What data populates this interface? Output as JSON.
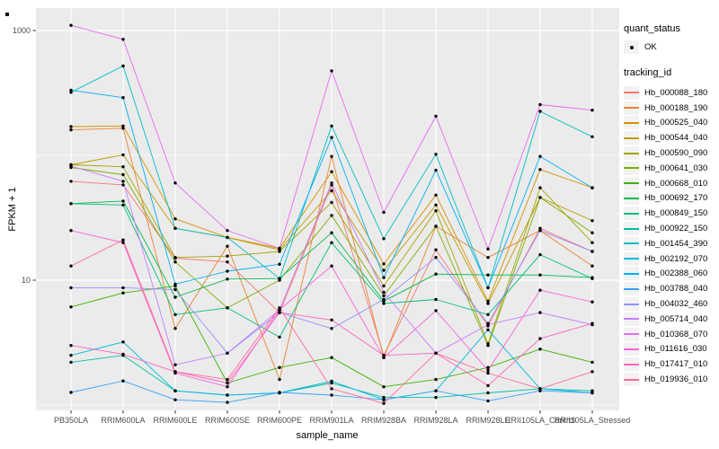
{
  "figure": {
    "panel_background": "#EBEBEB",
    "gridline_color": "#FFFFFF",
    "point_color": "#000000",
    "axis_text_color": "#4D4D4D",
    "tick_color": "#333333"
  },
  "chart_data": {
    "type": "line",
    "title": "",
    "xlabel": "sample_name",
    "ylabel": "FPKM + 1",
    "y_scale": "log10",
    "ylim": [
      0.8,
      1500
    ],
    "grid": true,
    "legend_position": "right",
    "y_ticks": [
      {
        "value": 1000,
        "label": "1000"
      },
      {
        "value": 10,
        "label": "10"
      }
    ],
    "y_minor_gridlines": [
      100,
      1
    ],
    "categories": [
      "PB350LA",
      "RRIM600LA",
      "RRIM600LE",
      "RRIM600SE",
      "RRIM600PE",
      "RRIM901LA",
      "RRIM928BA",
      "RRIM928LA",
      "RRIM928LE",
      "RRII105LA_Control",
      "RRII105LA_Stressed"
    ],
    "series": [
      {
        "name": "Hb_000088_180",
        "color": "#F8766D",
        "values": [
          62,
          58,
          15,
          14,
          5.5,
          58,
          2.5,
          17.5,
          4.3,
          26,
          17
        ]
      },
      {
        "name": "Hb_000188_190",
        "color": "#EA8331",
        "values": [
          160,
          165,
          4.1,
          18.7,
          1.6,
          98,
          2.4,
          27,
          15.2,
          25,
          13
        ]
      },
      {
        "name": "Hb_000525_040",
        "color": "#D89000",
        "values": [
          170,
          172,
          31,
          22,
          18,
          74,
          13.5,
          48,
          6.8,
          77,
          55
        ]
      },
      {
        "name": "Hb_000544_040",
        "color": "#C09B00",
        "values": [
          84,
          101,
          26,
          22,
          17.5,
          52,
          12,
          40,
          6.5,
          46,
          30
        ]
      },
      {
        "name": "Hb_000590_090",
        "color": "#A3A500",
        "values": [
          84,
          81,
          15.2,
          15.6,
          17,
          42,
          9,
          36,
          3.1,
          55,
          20
        ]
      },
      {
        "name": "Hb_000641_030",
        "color": "#7CAE00",
        "values": [
          80,
          70,
          14,
          6,
          10,
          33,
          7.5,
          27,
          3,
          46,
          24
        ]
      },
      {
        "name": "Hb_000668_010",
        "color": "#39B600",
        "values": [
          6.1,
          7.9,
          9,
          1.5,
          2,
          2.4,
          1.4,
          1.6,
          2,
          2.8,
          2.2
        ]
      },
      {
        "name": "Hb_000692_170",
        "color": "#00BB4E",
        "values": [
          41,
          43,
          7.3,
          10.2,
          10.3,
          24,
          6.8,
          11.2,
          11,
          11,
          10.5
        ]
      },
      {
        "name": "Hb_000849_150",
        "color": "#00BF7D",
        "values": [
          41,
          40,
          5.3,
          6,
          3.5,
          20,
          6.5,
          7,
          5.3,
          16,
          10.3
        ]
      },
      {
        "name": "Hb_000922_150",
        "color": "#00C1A3",
        "values": [
          2.2,
          2.5,
          1.3,
          1.2,
          1.25,
          1.5,
          1.15,
          1.15,
          1.25,
          1.35,
          1.3
        ]
      },
      {
        "name": "Hb_001454_390",
        "color": "#00BFC4",
        "values": [
          320,
          520,
          26,
          22,
          10.3,
          172,
          21.5,
          102,
          8.7,
          225,
          141
        ]
      },
      {
        "name": "Hb_002192_070",
        "color": "#00BAE0",
        "values": [
          2.5,
          3.2,
          1.3,
          1.2,
          1.25,
          1.55,
          1.1,
          1.3,
          4,
          1.35,
          1.25
        ]
      },
      {
        "name": "Hb_002388_060",
        "color": "#00B0F6",
        "values": [
          333,
          290,
          9.3,
          11.8,
          13.4,
          139,
          10.5,
          76,
          8.7,
          98,
          55
        ]
      },
      {
        "name": "Hb_003788_040",
        "color": "#35A2FF",
        "values": [
          1.26,
          1.56,
          1.1,
          1.05,
          1.26,
          1.2,
          1.1,
          1.3,
          1.08,
          1.3,
          1.25
        ]
      },
      {
        "name": "Hb_004032_460",
        "color": "#9590FF",
        "values": [
          8.7,
          8.7,
          8.4,
          2.6,
          5.5,
          4.1,
          7,
          15.2,
          4.5,
          25,
          17
        ]
      },
      {
        "name": "Hb_005714_040",
        "color": "#C77CFF",
        "values": [
          82,
          62,
          2.1,
          2.6,
          5.8,
          60,
          8,
          2.6,
          4.4,
          5.5,
          4.4
        ]
      },
      {
        "name": "Hb_010368_070",
        "color": "#E76BF3",
        "values": [
          1100,
          850,
          60,
          25,
          18,
          475,
          35,
          206,
          17.8,
          255,
          230
        ]
      },
      {
        "name": "Hb_011616_030",
        "color": "#FA62DB",
        "values": [
          25,
          20,
          1.8,
          1.4,
          5.8,
          13,
          2.4,
          5.7,
          1.9,
          8.3,
          6.7
        ]
      },
      {
        "name": "Hb_017417_010",
        "color": "#FF62BC",
        "values": [
          3,
          2.55,
          1.85,
          1.5,
          5.5,
          4.8,
          2.5,
          2.6,
          1.43,
          3.4,
          4.5
        ]
      },
      {
        "name": "Hb_019936_010",
        "color": "#FF6A98",
        "values": [
          13,
          21,
          1.85,
          1.6,
          6,
          1.35,
          1.03,
          2.6,
          1.8,
          1.35,
          1.85
        ]
      }
    ],
    "legend": {
      "quant_status_title": "quant_status",
      "quant_status_items": [
        {
          "label": "OK",
          "marker": "point"
        }
      ],
      "tracking_id_title": "tracking_id"
    }
  }
}
